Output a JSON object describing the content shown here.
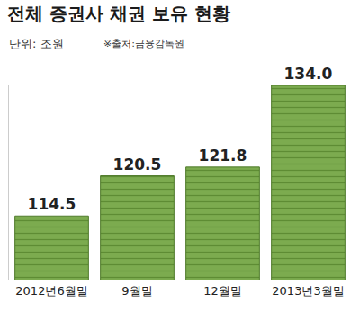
{
  "chart_data": {
    "type": "bar",
    "title": "전체 증권사 채권 보유 현황",
    "subtitle": "단위: 조원",
    "annotations": [
      "※출처:금융감독원"
    ],
    "categories": [
      "2012년6월말",
      "9월말",
      "12월말",
      "2013년3월말"
    ],
    "values": [
      114.5,
      120.5,
      121.8,
      134.0
    ],
    "value_labels": [
      "114.5",
      "120.5",
      "121.8",
      "134.0"
    ],
    "color": "#7cab4f",
    "ylim": [
      105,
      134
    ],
    "data_labels": true,
    "tick_labels": "x",
    "grid": false
  }
}
